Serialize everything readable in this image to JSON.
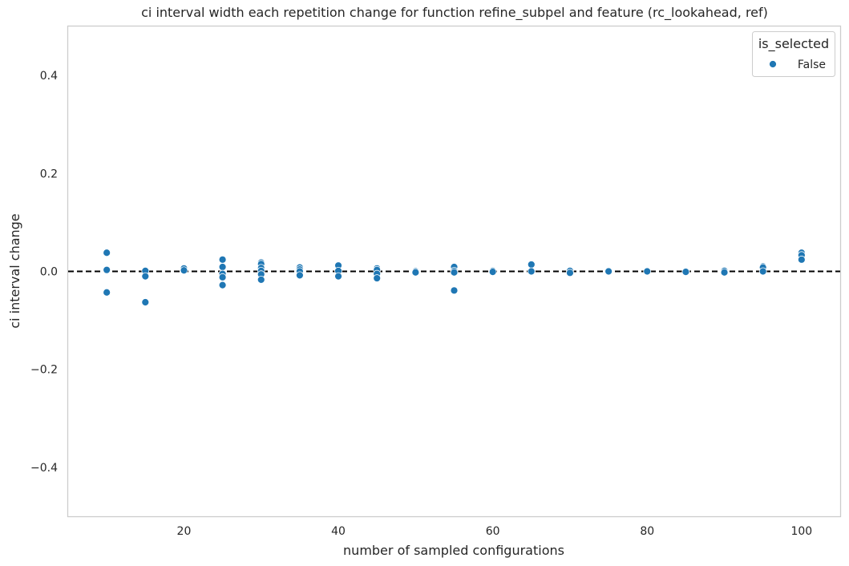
{
  "chart_data": {
    "type": "scatter",
    "title": "ci interval width each repetition change for function refine_subpel and feature (rc_lookahead, ref)",
    "xlabel": "number of sampled configurations",
    "ylabel": "ci interval change",
    "xlim": [
      5,
      105
    ],
    "ylim": [
      -0.5,
      0.5
    ],
    "xticks": [
      "20",
      "40",
      "60",
      "80",
      "100"
    ],
    "xtick_values": [
      20,
      40,
      60,
      80,
      100
    ],
    "yticks": [
      "−0.4",
      "−0.2",
      "0.0",
      "0.2",
      "0.4"
    ],
    "ytick_values": [
      -0.4,
      -0.2,
      0.0,
      0.2,
      0.4
    ],
    "grid": false,
    "reference_line": {
      "y": 0.0,
      "style": "dashed",
      "color": "#000000"
    },
    "legend": {
      "title": "is_selected",
      "position": "top-right",
      "entries": [
        "False"
      ]
    },
    "series": [
      {
        "name": "False",
        "color": "#1f77b4",
        "points": [
          [
            10,
            0.038
          ],
          [
            10,
            0.003
          ],
          [
            10,
            -0.043
          ],
          [
            15,
            0.001
          ],
          [
            15,
            -0.01
          ],
          [
            15,
            -0.063
          ],
          [
            20,
            0.006
          ],
          [
            20,
            0.002
          ],
          [
            25,
            0.024
          ],
          [
            25,
            0.009
          ],
          [
            25,
            -0.005
          ],
          [
            25,
            -0.012
          ],
          [
            25,
            -0.028
          ],
          [
            30,
            0.018
          ],
          [
            30,
            0.015
          ],
          [
            30,
            0.007
          ],
          [
            30,
            0.001
          ],
          [
            30,
            -0.006
          ],
          [
            30,
            -0.017
          ],
          [
            35,
            0.008
          ],
          [
            35,
            0.004
          ],
          [
            35,
            0.0
          ],
          [
            35,
            -0.008
          ],
          [
            40,
            0.012
          ],
          [
            40,
            0.001
          ],
          [
            40,
            -0.01
          ],
          [
            45,
            0.006
          ],
          [
            45,
            0.003
          ],
          [
            45,
            -0.005
          ],
          [
            45,
            -0.014
          ],
          [
            50,
            0.0
          ],
          [
            50,
            -0.002
          ],
          [
            55,
            0.009
          ],
          [
            55,
            0.001
          ],
          [
            55,
            -0.002
          ],
          [
            55,
            -0.039
          ],
          [
            60,
            0.001
          ],
          [
            60,
            -0.001
          ],
          [
            65,
            0.014
          ],
          [
            65,
            0.0
          ],
          [
            70,
            0.001
          ],
          [
            70,
            -0.003
          ],
          [
            75,
            0.0
          ],
          [
            80,
            0.0
          ],
          [
            85,
            0.0
          ],
          [
            85,
            -0.001
          ],
          [
            90,
            0.001
          ],
          [
            90,
            -0.002
          ],
          [
            95,
            0.01
          ],
          [
            95,
            0.008
          ],
          [
            95,
            0.0
          ],
          [
            100,
            0.038
          ],
          [
            100,
            0.033
          ],
          [
            100,
            0.024
          ]
        ]
      }
    ]
  }
}
